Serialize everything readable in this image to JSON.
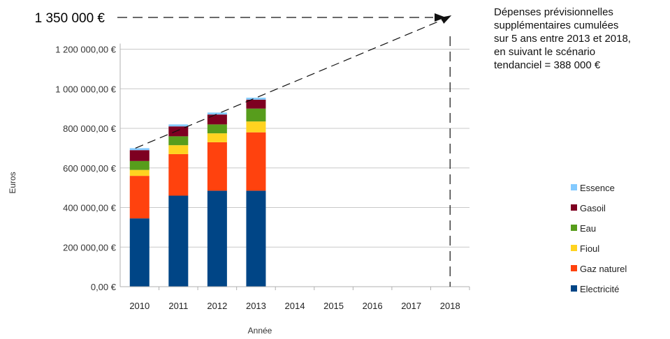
{
  "chart_data": {
    "type": "bar",
    "stacked": true,
    "categories": [
      "2010",
      "2011",
      "2012",
      "2013",
      "2014",
      "2015",
      "2016",
      "2017",
      "2018"
    ],
    "xlabel": "Année",
    "ylabel": "Euros",
    "ylim": [
      0,
      1350000
    ],
    "yticks": [
      0,
      200000,
      400000,
      600000,
      800000,
      1000000,
      1200000
    ],
    "ytick_labels": [
      "0,00 €",
      "200 000,00 €",
      "400 000,00 €",
      "600 000,00 €",
      "800 000,00 €",
      "1 000 000,00 €",
      "1 200 000,00 €"
    ],
    "grid": true,
    "legend_position": "right",
    "series": [
      {
        "name": "Electricité",
        "color": "#004586",
        "values": [
          345000,
          460000,
          485000,
          485000,
          null,
          null,
          null,
          null,
          null
        ]
      },
      {
        "name": "Gaz naturel",
        "color": "#ff420e",
        "values": [
          215000,
          210000,
          245000,
          295000,
          null,
          null,
          null,
          null,
          null
        ]
      },
      {
        "name": "Fioul",
        "color": "#ffd320",
        "values": [
          30000,
          45000,
          45000,
          55000,
          null,
          null,
          null,
          null,
          null
        ]
      },
      {
        "name": "Eau",
        "color": "#579d1c",
        "values": [
          45000,
          45000,
          45000,
          65000,
          null,
          null,
          null,
          null,
          null
        ]
      },
      {
        "name": "Gasoil",
        "color": "#7e0021",
        "values": [
          55000,
          50000,
          50000,
          45000,
          null,
          null,
          null,
          null,
          null
        ]
      },
      {
        "name": "Essence",
        "color": "#83caff",
        "values": [
          10000,
          10000,
          10000,
          10000,
          null,
          null,
          null,
          null,
          null
        ]
      }
    ],
    "projection": {
      "label": "1 350 000 €",
      "value": 1350000,
      "start": {
        "year": "2010",
        "value": 700000
      },
      "end": {
        "year": "2018",
        "value": 1350000
      },
      "style": "dashed"
    },
    "annotation": "Dépenses prévisionnelles\nsupplémentaires cumulées\nsur 5 ans entre 2013 et 2018,\nen suivant le scénario\ntendanciel = 388 000 €"
  }
}
